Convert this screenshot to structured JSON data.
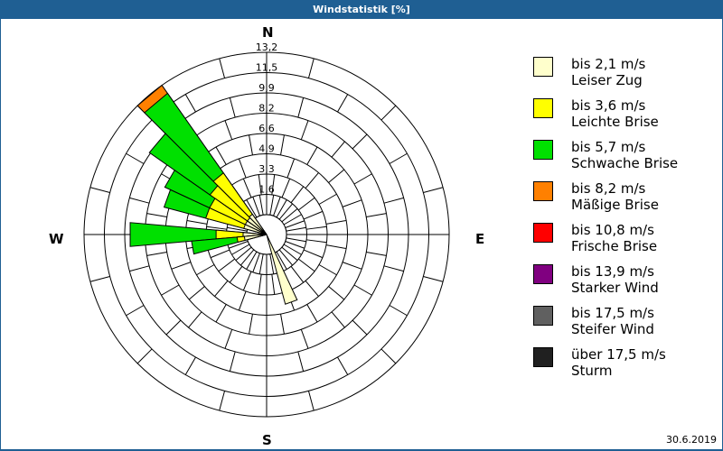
{
  "window": {
    "title": "Windstatistik [%]"
  },
  "footer": {
    "date": "30.6.2019"
  },
  "compass": {
    "n": "N",
    "e": "E",
    "s": "S",
    "w": "W"
  },
  "legend": [
    {
      "color": "#ffffcc",
      "range": "bis 2,1 m/s",
      "name": "Leiser Zug"
    },
    {
      "color": "#ffff00",
      "range": "bis 3,6 m/s",
      "name": "Leichte Brise"
    },
    {
      "color": "#00e000",
      "range": "bis 5,7 m/s",
      "name": "Schwache Brise"
    },
    {
      "color": "#ff8000",
      "range": "bis 8,2 m/s",
      "name": "Mäßige Brise"
    },
    {
      "color": "#ff0000",
      "range": "bis 10,8 m/s",
      "name": "Frische Brise"
    },
    {
      "color": "#800080",
      "range": "bis 13,9 m/s",
      "name": "Starker Wind"
    },
    {
      "color": "#606060",
      "range": "bis 17,5 m/s",
      "name": "Steifer Wind"
    },
    {
      "color": "#202020",
      "range": "über 17,5 m/s",
      "name": "Sturm"
    }
  ],
  "chart_data": {
    "type": "wind-rose",
    "title": "Windstatistik [%]",
    "date": "30.6.2019",
    "radial_ticks": [
      "1,6",
      "3,3",
      "4,9",
      "6,6",
      "8,2",
      "9,9",
      "11,5",
      "13,2"
    ],
    "radial_max": 13.2,
    "directions_labels": [
      "N",
      "E",
      "S",
      "W"
    ],
    "categories": [
      "bis 2,1 m/s",
      "bis 3,6 m/s",
      "bis 5,7 m/s",
      "bis 8,2 m/s"
    ],
    "sectors": [
      {
        "dir_deg": 320,
        "cumulative_pct": [
          0.4,
          4.5,
          12.4,
          13.2
        ]
      },
      {
        "dir_deg": 310,
        "cumulative_pct": [
          0.3,
          4.0,
          10.0,
          10.0
        ]
      },
      {
        "dir_deg": 300,
        "cumulative_pct": [
          0.3,
          3.5,
          7.5,
          7.5
        ]
      },
      {
        "dir_deg": 290,
        "cumulative_pct": [
          0.3,
          3.5,
          7.0,
          7.0
        ]
      },
      {
        "dir_deg": 270,
        "cumulative_pct": [
          0.3,
          2.5,
          9.5,
          9.5
        ]
      },
      {
        "dir_deg": 260,
        "cumulative_pct": [
          0.2,
          0.8,
          4.5,
          4.5
        ]
      },
      {
        "dir_deg": 160,
        "cumulative_pct": [
          4.6,
          4.6,
          4.6,
          4.6
        ]
      }
    ]
  }
}
